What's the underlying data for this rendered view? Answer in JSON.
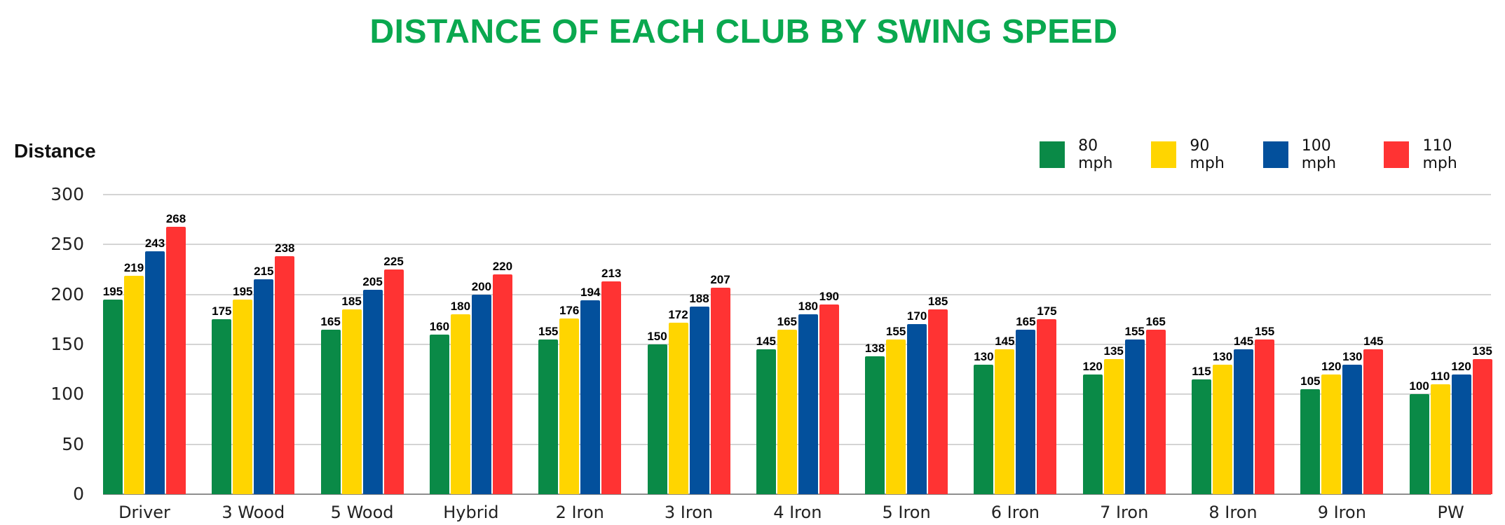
{
  "chart_data": {
    "type": "bar",
    "title": "DISTANCE OF EACH CLUB BY SWING SPEED",
    "xlabel": "",
    "ylabel": "Distance",
    "ylim": [
      0,
      300
    ],
    "yticks": [
      0,
      50,
      100,
      150,
      200,
      250,
      300
    ],
    "grid": true,
    "legend_position": "top-right",
    "categories": [
      "Driver",
      "3 Wood",
      "5 Wood",
      "Hybrid",
      "2 Iron",
      "3 Iron",
      "4 Iron",
      "5 Iron",
      "6 Iron",
      "7 Iron",
      "8 Iron",
      "9 Iron",
      "PW"
    ],
    "series": [
      {
        "name": "80 mph",
        "color": "#0a8a47",
        "values": [
          195,
          175,
          165,
          160,
          155,
          150,
          145,
          138,
          130,
          120,
          115,
          105,
          100
        ]
      },
      {
        "name": "90 mph",
        "color": "#ffd500",
        "values": [
          219,
          195,
          185,
          180,
          176,
          172,
          165,
          155,
          145,
          135,
          130,
          120,
          110
        ]
      },
      {
        "name": "100 mph",
        "color": "#03509c",
        "values": [
          243,
          215,
          205,
          200,
          194,
          188,
          180,
          170,
          165,
          155,
          145,
          130,
          120
        ]
      },
      {
        "name": "110 mph",
        "color": "#ff3333",
        "values": [
          268,
          238,
          225,
          220,
          213,
          207,
          190,
          185,
          175,
          165,
          155,
          145,
          135
        ]
      }
    ]
  }
}
